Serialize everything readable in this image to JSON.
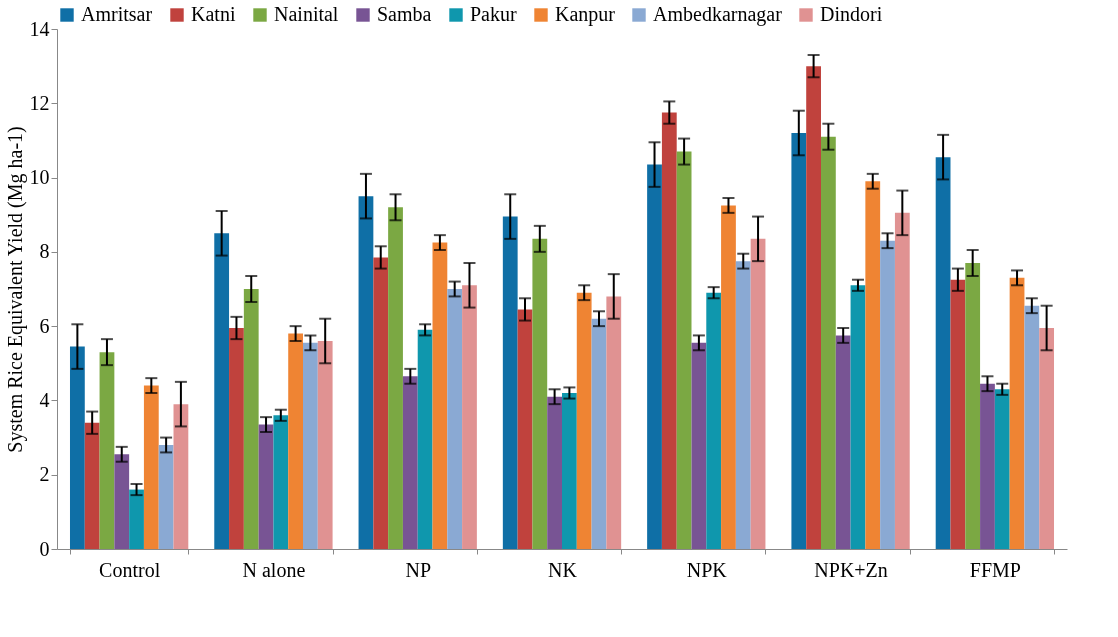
{
  "chart_data": {
    "type": "bar",
    "ylabel": "System Rice Equivalent Yield (Mg ha-1)",
    "categories": [
      "Control",
      "N alone",
      "NP",
      "NK",
      "NPK",
      "NPK+Zn",
      "FFMP"
    ],
    "ylim": [
      0,
      14
    ],
    "yticks": [
      0,
      2,
      4,
      6,
      8,
      10,
      12,
      14
    ],
    "grid": false,
    "legend": "top",
    "series": [
      {
        "name": "Amritsar",
        "color": "#0f6fa6",
        "values": [
          5.45,
          8.5,
          9.5,
          8.95,
          10.35,
          11.2,
          10.55
        ],
        "errors": [
          0.6,
          0.6,
          0.6,
          0.6,
          0.6,
          0.6,
          0.6
        ]
      },
      {
        "name": "Katni",
        "color": "#c0423d",
        "values": [
          3.4,
          5.95,
          7.85,
          6.45,
          11.75,
          13.0,
          7.25
        ],
        "errors": [
          0.3,
          0.3,
          0.3,
          0.3,
          0.3,
          0.3,
          0.3
        ]
      },
      {
        "name": "Nainital",
        "color": "#7ba843",
        "values": [
          5.3,
          7.0,
          9.2,
          8.35,
          10.7,
          11.1,
          7.7
        ],
        "errors": [
          0.35,
          0.35,
          0.35,
          0.35,
          0.35,
          0.35,
          0.35
        ]
      },
      {
        "name": "Samba",
        "color": "#785494",
        "values": [
          2.55,
          3.35,
          4.65,
          4.1,
          5.55,
          5.75,
          4.45
        ],
        "errors": [
          0.2,
          0.2,
          0.2,
          0.2,
          0.2,
          0.2,
          0.2
        ]
      },
      {
        "name": "Pakur",
        "color": "#0f97ad",
        "values": [
          1.6,
          3.6,
          5.9,
          4.2,
          6.9,
          7.1,
          4.3
        ],
        "errors": [
          0.15,
          0.15,
          0.15,
          0.15,
          0.15,
          0.15,
          0.15
        ]
      },
      {
        "name": "Kanpur",
        "color": "#ef8433",
        "values": [
          4.4,
          5.8,
          8.25,
          6.9,
          9.25,
          9.9,
          7.3
        ],
        "errors": [
          0.2,
          0.2,
          0.2,
          0.2,
          0.2,
          0.2,
          0.2
        ]
      },
      {
        "name": "Ambedkarnagar",
        "color": "#8aa9d3",
        "values": [
          2.8,
          5.55,
          7.0,
          6.2,
          7.75,
          8.3,
          6.55
        ],
        "errors": [
          0.2,
          0.2,
          0.2,
          0.2,
          0.2,
          0.2,
          0.2
        ]
      },
      {
        "name": "Dindori",
        "color": "#e09292",
        "values": [
          3.9,
          5.6,
          7.1,
          6.8,
          8.35,
          9.05,
          5.95
        ],
        "errors": [
          0.6,
          0.6,
          0.6,
          0.6,
          0.6,
          0.6,
          0.6
        ]
      }
    ]
  }
}
